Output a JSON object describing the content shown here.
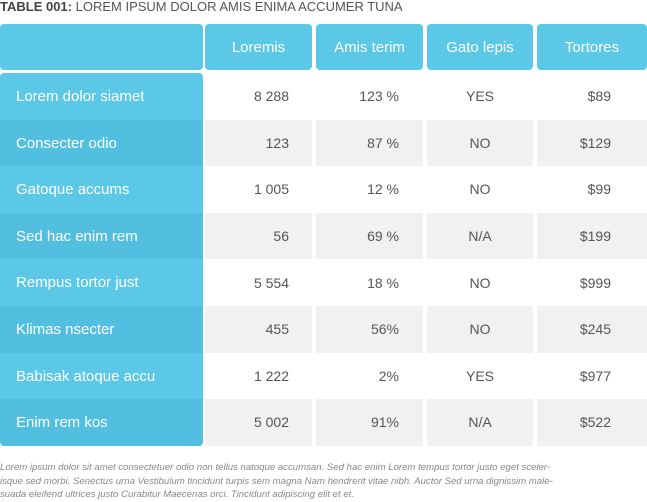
{
  "title": {
    "label": "TABLE 001:",
    "text": "LOREM IPSUM DOLOR AMIS ENIMA ACCUMER TUNA"
  },
  "table": {
    "columns": [
      "Loremis",
      "Amis terim",
      "Gato lepis",
      "Tortores"
    ],
    "rows": [
      [
        "Lorem dolor siamet",
        "8 288",
        "123 %",
        "YES",
        "$89"
      ],
      [
        "Consecter odio",
        "123",
        "87 %",
        "NO",
        "$129"
      ],
      [
        "Gatoque accums",
        "1 005",
        "12 %",
        "NO",
        "$99"
      ],
      [
        "Sed hac enim rem",
        "56",
        "69 %",
        "N/A",
        "$199"
      ],
      [
        "Rempus tortor just",
        "5 554",
        "18 %",
        "NO",
        "$999"
      ],
      [
        "Klimas nsecter",
        "455",
        "56%",
        "NO",
        "$245"
      ],
      [
        "Babisak atoque accu",
        "1 222",
        "2%",
        "YES",
        "$977"
      ],
      [
        "Enim rem kos",
        "5 002",
        "91%",
        "N/A",
        "$522"
      ]
    ]
  },
  "footnote": [
    "Lorem ipsum dolor sit amet consectetuer odio non tellus natoque accumsan. Sed hac enim Lorem tempus tortor justo eget sceler-",
    "isque sed morbi. Senectus urna Vestibulum tincidunt turpis sem magna Nam hendrerit vitae nibh. Auctor Sed urna dignissim male-",
    "suada eleifend ultrices justo Curabitur Maecenas orci. Tincidunt adipiscing elit et et."
  ]
}
